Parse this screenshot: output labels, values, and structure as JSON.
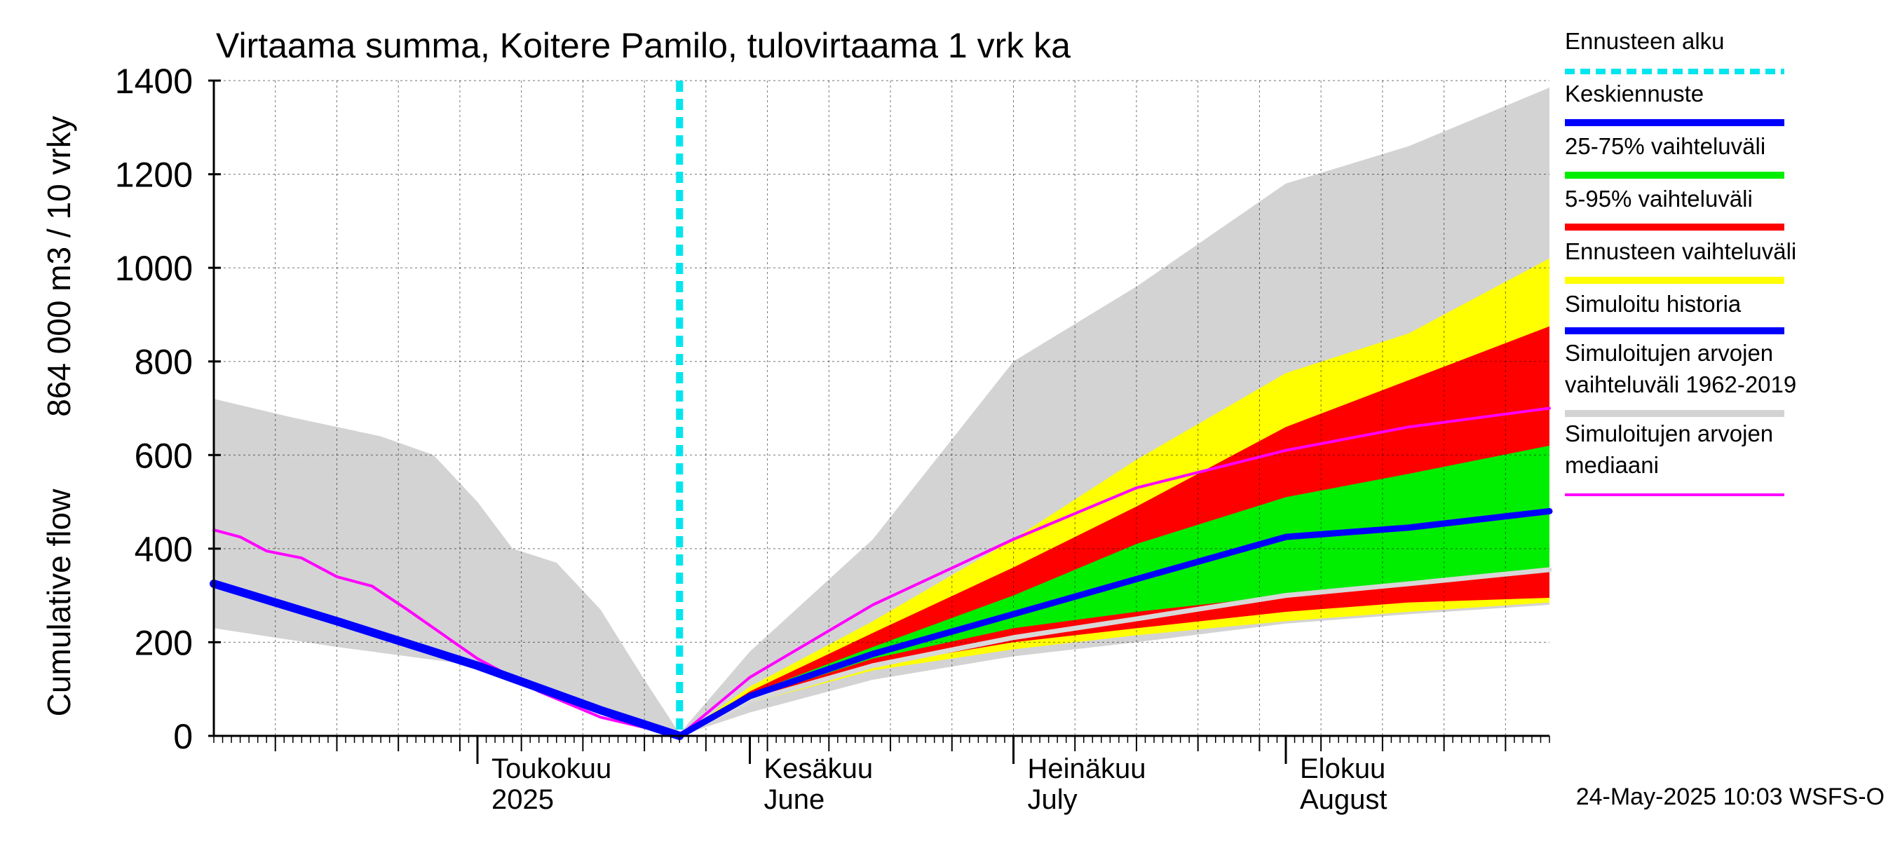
{
  "chart_data": {
    "type": "area",
    "title": "Virtaama summa, Koitere Pamilo, tulovirtaama 1 vrk ka",
    "ylabel_fi": "864 000 m3 / 10 vrky",
    "ylabel_en": "Cumulative flow",
    "ylim": [
      0,
      1400
    ],
    "yticks": [
      0,
      200,
      400,
      600,
      800,
      1000,
      1200,
      1400
    ],
    "grid": true,
    "legend_position": "right",
    "x_start": "2025-04-01",
    "x_end": "2025-08-31",
    "forecast_start": "2025-05-24",
    "month_labels": [
      {
        "date": "2025-05-01",
        "line1": "Toukokuu",
        "line2": "2025"
      },
      {
        "date": "2025-06-01",
        "line1": "Kesäkuu",
        "line2": "June"
      },
      {
        "date": "2025-07-01",
        "line1": "Heinäkuu",
        "line2": "July"
      },
      {
        "date": "2025-08-01",
        "line1": "Elokuu",
        "line2": "August"
      }
    ],
    "footer": "24-May-2025 10:03 WSFS-O",
    "colors": {
      "forecast_start": "#00e5ee",
      "mean_forecast": "#0000ff",
      "range_25_75": "#00ee00",
      "range_5_95": "#ff0000",
      "forecast_range": "#ffff00",
      "sim_history": "#0000ff",
      "sim_range": "#d3d3d3",
      "sim_median": "#ff00ff"
    },
    "legend": [
      {
        "key": "forecast_start",
        "lines": [
          "Ennusteen alku"
        ],
        "style": "dashed"
      },
      {
        "key": "mean_forecast",
        "lines": [
          "Keskiennuste"
        ],
        "style": "solid"
      },
      {
        "key": "range_25_75",
        "lines": [
          "25-75% vaihteluväli"
        ],
        "style": "solid"
      },
      {
        "key": "range_5_95",
        "lines": [
          "5-95% vaihteluväli"
        ],
        "style": "solid"
      },
      {
        "key": "forecast_range",
        "lines": [
          "Ennusteen vaihteluväli"
        ],
        "style": "solid"
      },
      {
        "key": "sim_history",
        "lines": [
          "Simuloitu historia"
        ],
        "style": "solid"
      },
      {
        "key": "sim_range",
        "lines": [
          "Simuloitujen arvojen",
          "vaihteluväli 1962-2019"
        ],
        "style": "solid"
      },
      {
        "key": "sim_median",
        "lines": [
          "Simuloitujen arvojen",
          "mediaani"
        ],
        "style": "thin"
      }
    ],
    "series": {
      "sim_range_upper": {
        "x": [
          "2025-04-01",
          "2025-04-10",
          "2025-04-20",
          "2025-04-26",
          "2025-05-01",
          "2025-05-05",
          "2025-05-10",
          "2025-05-15",
          "2025-05-20",
          "2025-05-24",
          "2025-06-01",
          "2025-06-15",
          "2025-07-01",
          "2025-07-15",
          "2025-08-01",
          "2025-08-15",
          "2025-08-31"
        ],
        "y": [
          720,
          680,
          640,
          600,
          500,
          400,
          370,
          270,
          120,
          5,
          180,
          420,
          800,
          960,
          1180,
          1260,
          1385
        ]
      },
      "sim_range_lower": {
        "x": [
          "2025-04-01",
          "2025-04-15",
          "2025-05-01",
          "2025-05-15",
          "2025-05-24",
          "2025-06-01",
          "2025-06-15",
          "2025-07-01",
          "2025-07-15",
          "2025-08-01",
          "2025-08-15",
          "2025-08-31"
        ],
        "y": [
          230,
          190,
          150,
          60,
          0,
          50,
          120,
          170,
          200,
          240,
          260,
          280
        ]
      },
      "sim_median": {
        "x": [
          "2025-04-01",
          "2025-04-04",
          "2025-04-07",
          "2025-04-11",
          "2025-04-15",
          "2025-04-19",
          "2025-04-23",
          "2025-05-01",
          "2025-05-08",
          "2025-05-15",
          "2025-05-24",
          "2025-06-01",
          "2025-06-15",
          "2025-07-01",
          "2025-07-15",
          "2025-08-01",
          "2025-08-15",
          "2025-08-31"
        ],
        "y": [
          440,
          425,
          395,
          380,
          340,
          320,
          270,
          165,
          95,
          40,
          0,
          125,
          280,
          420,
          530,
          610,
          660,
          700
        ]
      },
      "sim_history": {
        "x": [
          "2025-04-01",
          "2025-04-15",
          "2025-05-01",
          "2025-05-15",
          "2025-05-24"
        ],
        "y": [
          325,
          245,
          150,
          55,
          0
        ]
      },
      "forecast_range_upper": {
        "x": [
          "2025-05-24",
          "2025-06-01",
          "2025-06-15",
          "2025-07-01",
          "2025-07-15",
          "2025-08-01",
          "2025-08-15",
          "2025-08-31"
        ],
        "y": [
          0,
          105,
          245,
          420,
          590,
          775,
          860,
          1020
        ]
      },
      "forecast_range_lower": {
        "x": [
          "2025-05-24",
          "2025-06-01",
          "2025-06-15",
          "2025-07-01",
          "2025-07-15",
          "2025-08-01",
          "2025-08-15",
          "2025-08-31"
        ],
        "y": [
          0,
          70,
          140,
          185,
          215,
          245,
          265,
          285
        ]
      },
      "p95": {
        "x": [
          "2025-05-24",
          "2025-06-01",
          "2025-06-15",
          "2025-07-01",
          "2025-07-15",
          "2025-08-01",
          "2025-08-15",
          "2025-08-31"
        ],
        "y": [
          0,
          95,
          220,
          360,
          490,
          660,
          760,
          875
        ]
      },
      "p5": {
        "x": [
          "2025-05-24",
          "2025-06-01",
          "2025-06-15",
          "2025-07-01",
          "2025-07-15",
          "2025-08-01",
          "2025-08-15",
          "2025-08-31"
        ],
        "y": [
          0,
          75,
          150,
          200,
          230,
          265,
          285,
          295
        ]
      },
      "p75": {
        "x": [
          "2025-05-24",
          "2025-06-01",
          "2025-06-15",
          "2025-07-01",
          "2025-07-15",
          "2025-08-01",
          "2025-08-15",
          "2025-08-31"
        ],
        "y": [
          0,
          90,
          190,
          300,
          410,
          510,
          560,
          620
        ]
      },
      "p25": {
        "x": [
          "2025-05-24",
          "2025-06-01",
          "2025-06-15",
          "2025-07-01",
          "2025-07-15",
          "2025-08-01",
          "2025-08-15",
          "2025-08-31"
        ],
        "y": [
          0,
          80,
          165,
          230,
          265,
          300,
          330,
          355
        ]
      },
      "mean_forecast": {
        "x": [
          "2025-05-24",
          "2025-06-01",
          "2025-06-15",
          "2025-07-01",
          "2025-07-15",
          "2025-08-01",
          "2025-08-15",
          "2025-08-31"
        ],
        "y": [
          0,
          85,
          175,
          260,
          335,
          425,
          445,
          480
        ]
      },
      "gray_line": {
        "x": [
          "2025-05-24",
          "2025-06-01",
          "2025-06-15",
          "2025-07-01",
          "2025-07-15",
          "2025-08-01",
          "2025-08-15",
          "2025-08-31"
        ],
        "y": [
          0,
          75,
          150,
          210,
          250,
          300,
          325,
          355
        ]
      }
    }
  }
}
